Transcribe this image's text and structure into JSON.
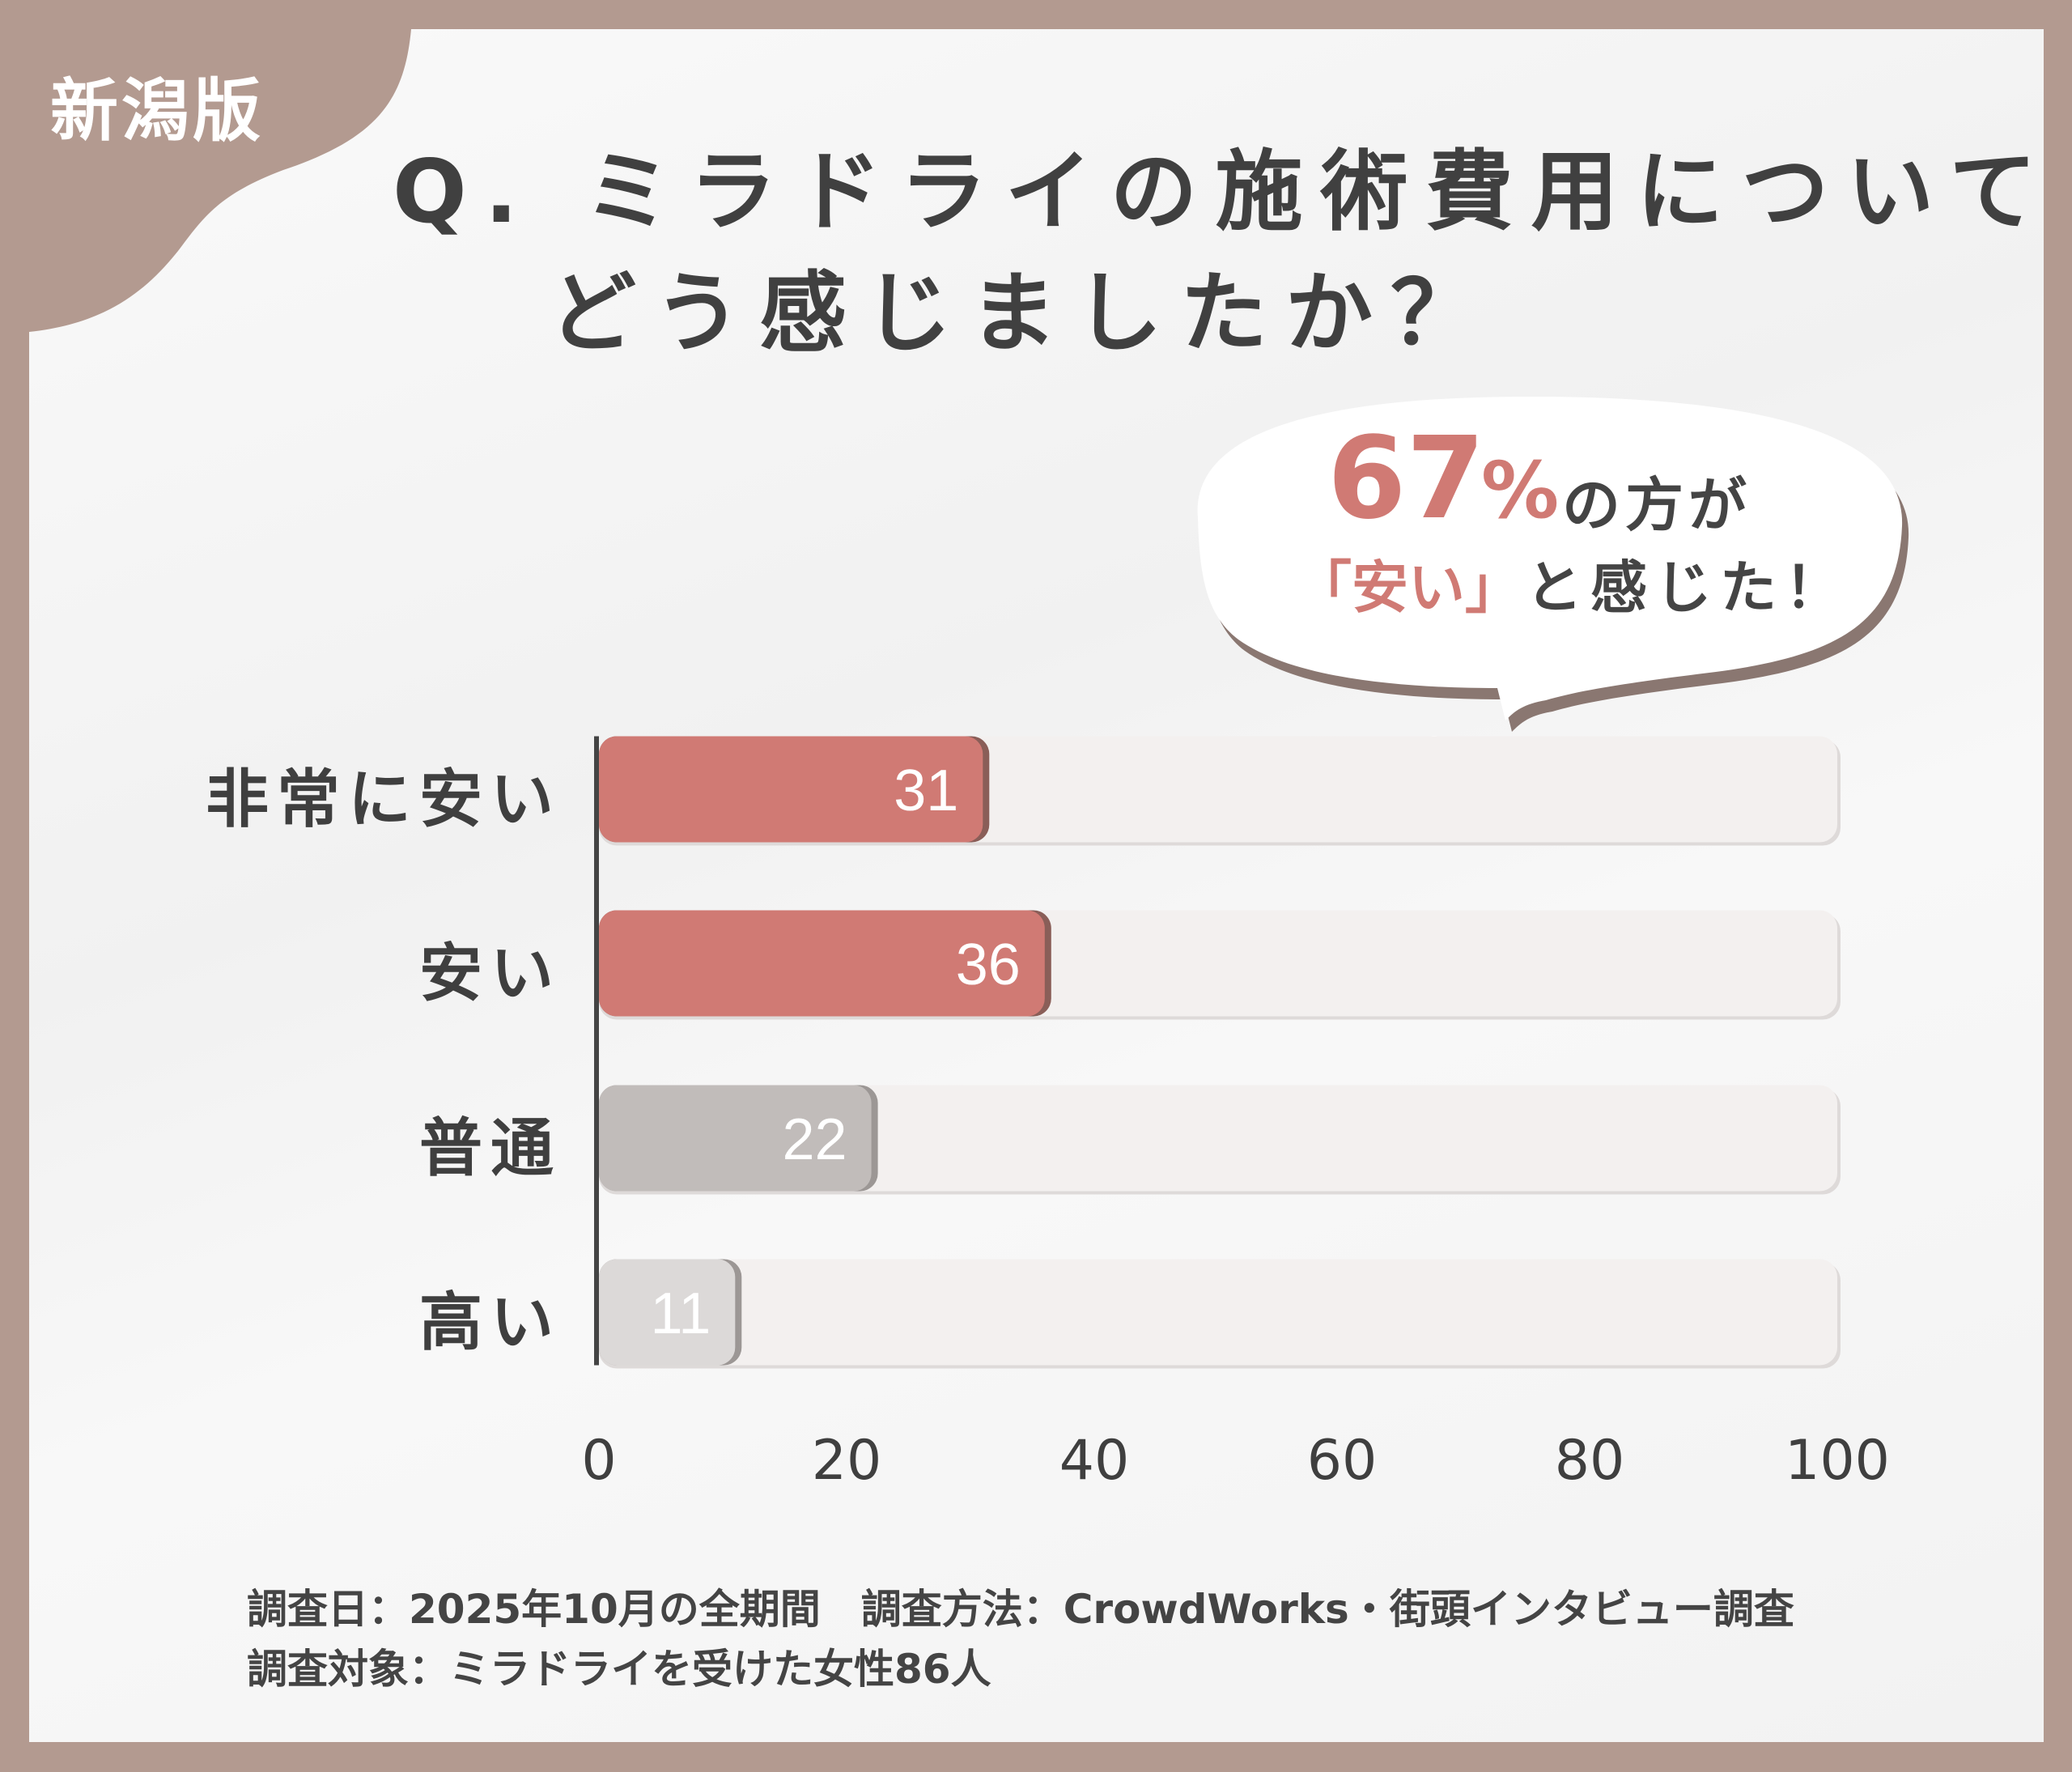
{
  "badge": "新潟版",
  "title": {
    "line1": "Q. ミラドライの施術費用について",
    "line2": "どう感じましたか？"
  },
  "callout": {
    "percent": "67",
    "percent_sign": "%",
    "after_percent": "の方が",
    "quote": "「安い」",
    "after_quote": "と感じた！"
  },
  "colors": {
    "frame": "#b39a90",
    "highlight": "#d07a74",
    "neutral": "#c1bcba",
    "low": "#dcd9d8",
    "track": "#f3f0ef",
    "text": "#404040"
  },
  "chart_data": {
    "type": "bar",
    "orientation": "horizontal",
    "categories": [
      "非常に安い",
      "安い",
      "普通",
      "高い"
    ],
    "values": [
      31,
      36,
      22,
      11
    ],
    "bar_colors": [
      "#d07a74",
      "#d07a74",
      "#c1bcba",
      "#dcd9d8"
    ],
    "xlim": [
      0,
      100
    ],
    "xticks": [
      "0",
      "20",
      "40",
      "60",
      "80",
      "100"
    ],
    "xlabel": "",
    "ylabel": "",
    "grid": false
  },
  "footer": {
    "line1": "調査日：2025年10月の全期間　調査方法：CrowdWorks・街頭インタビュー調査",
    "line2": "調査対象：ミラドライを受けた女性86人"
  }
}
